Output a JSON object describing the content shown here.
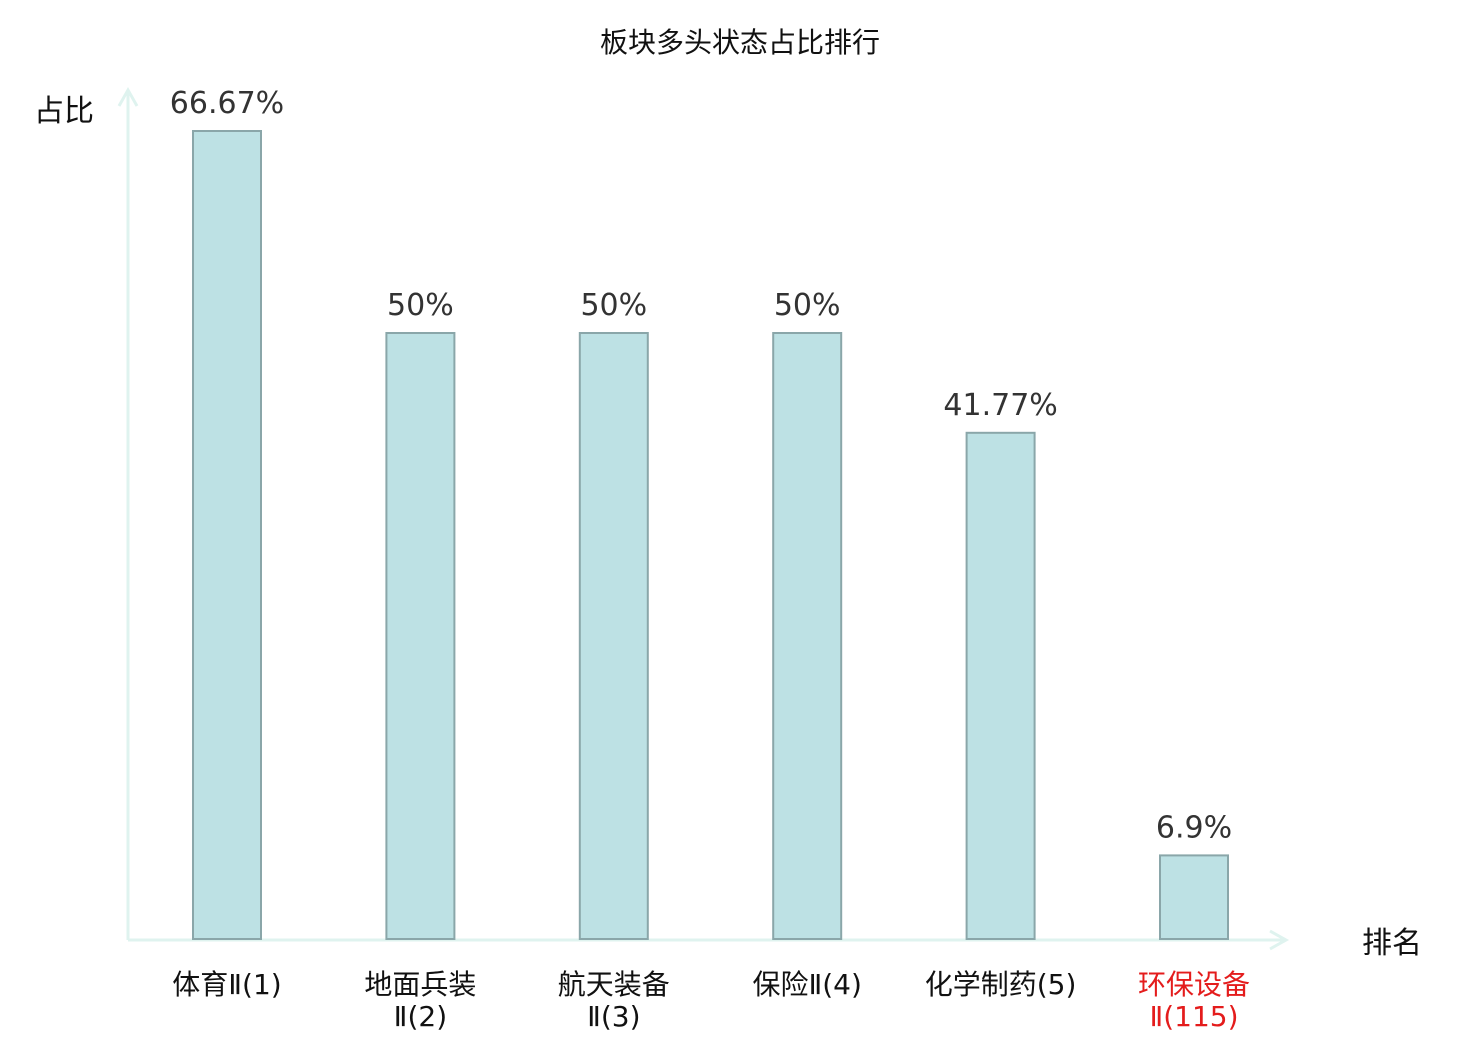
{
  "chart_data": {
    "type": "bar",
    "title": "板块多头状态占比排行",
    "xlabel": "排名",
    "ylabel": "占比",
    "categories": [
      [
        "体育Ⅱ(1)"
      ],
      [
        "地面兵装",
        "Ⅱ(2)"
      ],
      [
        "航天装备",
        "Ⅱ(3)"
      ],
      [
        "保险Ⅱ(4)"
      ],
      [
        "化学制药(5)"
      ],
      [
        "环保设备",
        "Ⅱ(115)"
      ]
    ],
    "values": [
      66.67,
      50,
      50,
      50,
      41.77,
      6.9
    ],
    "value_labels": [
      "66.67%",
      "50%",
      "50%",
      "50%",
      "41.77%",
      "6.9%"
    ],
    "ylim": [
      0,
      66.67
    ],
    "grid": false,
    "colors": {
      "bar_fill": "#bde1e4",
      "bar_stroke": "#8aa6a9",
      "axis": "#dff3ef",
      "label": "#111111",
      "highlight_label": "#e41c1c",
      "value_label": "#333333"
    },
    "highlight_index": 5
  }
}
